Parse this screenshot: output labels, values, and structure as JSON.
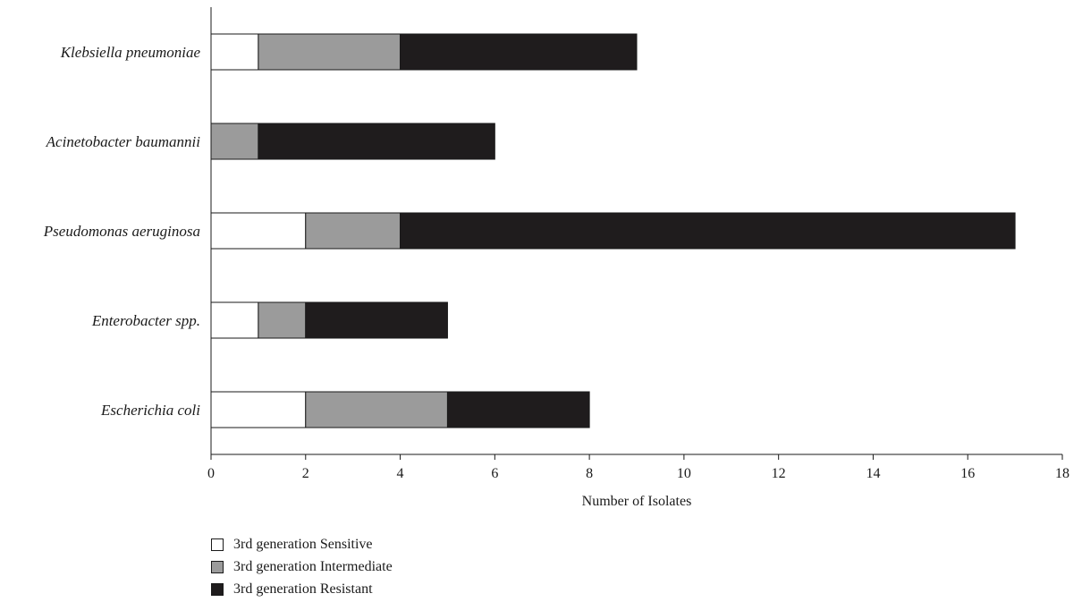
{
  "chart_data": {
    "type": "bar",
    "orientation": "horizontal",
    "stacked": true,
    "categories": [
      "Klebsiella pneumoniae",
      "Acinetobacter baumannii",
      "Pseudomonas aeruginosa",
      "Enterobacter spp.",
      "Escherichia coli"
    ],
    "series": [
      {
        "name": "3rd generation Sensitive",
        "color": "#ffffff",
        "values": [
          1,
          0,
          2,
          1,
          2
        ]
      },
      {
        "name": "3rd generation Intermediate",
        "color": "#9b9b9b",
        "values": [
          3,
          1,
          2,
          1,
          3
        ]
      },
      {
        "name": "3rd generation Resistant",
        "color": "#1f1c1d",
        "values": [
          5,
          5,
          13,
          3,
          3
        ]
      }
    ],
    "xlabel": "Number of Isolates",
    "xlim": [
      0,
      18
    ],
    "xticks": [
      0,
      2,
      4,
      6,
      8,
      10,
      12,
      14,
      16,
      18
    ],
    "grid": false,
    "legend_position": "bottom-left"
  }
}
